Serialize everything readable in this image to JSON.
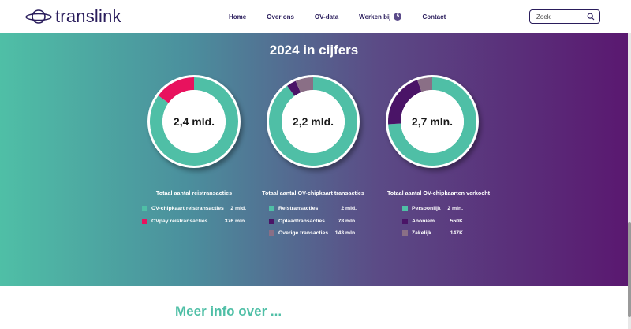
{
  "header": {
    "logo_text": "translink",
    "nav": [
      {
        "label": "Home"
      },
      {
        "label": "Over ons"
      },
      {
        "label": "OV-data"
      },
      {
        "label": "Werken bij",
        "badge": "5"
      },
      {
        "label": "Contact"
      }
    ],
    "search": {
      "placeholder": "Zoek",
      "value": ""
    }
  },
  "stats": {
    "title": "2024 in cijfers",
    "colors": {
      "teal": "#4fbfa6",
      "pink": "#e8125e",
      "purple": "#4a1467",
      "mauve": "#8a6f86"
    },
    "charts": [
      {
        "center_value": "2,4 mld.",
        "title": "Totaal aantal reistransacties",
        "items": [
          {
            "label": "OV-chipkaart reistransacties",
            "value": "2 mld.",
            "fraction": 0.85,
            "color": "#4fbfa6"
          },
          {
            "label": "OVpay reistransacties",
            "value": "376 mln.",
            "fraction": 0.15,
            "color": "#e8125e"
          }
        ]
      },
      {
        "center_value": "2,2 mld.",
        "title": "Totaal aantal OV-chipkaart transacties",
        "items": [
          {
            "label": "Reistransacties",
            "value": "2 mld.",
            "fraction": 0.9,
            "color": "#4fbfa6"
          },
          {
            "label": "Oplaadtransacties",
            "value": "78 mln.",
            "fraction": 0.035,
            "color": "#4a1467"
          },
          {
            "label": "Overige transacties",
            "value": "143 mln.",
            "fraction": 0.065,
            "color": "#8a6f86"
          }
        ]
      },
      {
        "center_value": "2,7 mln.",
        "title": "Totaal aantal OV-chipkaarten verkocht",
        "items": [
          {
            "label": "Persoonlijk",
            "value": "2 mln.",
            "fraction": 0.74,
            "color": "#4fbfa6"
          },
          {
            "label": "Anoniem",
            "value": "550K",
            "fraction": 0.205,
            "color": "#4a1467"
          },
          {
            "label": "Zakelijk",
            "value": "147K",
            "fraction": 0.055,
            "color": "#8a6f86"
          }
        ]
      }
    ]
  },
  "more_info": {
    "title": "Meer info over ..."
  }
}
